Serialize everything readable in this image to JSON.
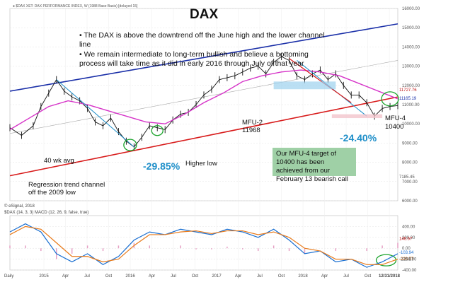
{
  "chart_data": [
    {
      "type": "line",
      "title": "DAX",
      "header": "● $DAX XET: DAX PERFORMANCE INDEX, W (1988 Base Basis) [delayed 15]",
      "ylim": [
        6000,
        16000
      ],
      "y_ticks": [
        "16000.00",
        "15000.00",
        "14000.00",
        "13000.00",
        "12000.00",
        "11000.00",
        "10000.00",
        "9000.00",
        "8000.00",
        "7000.00",
        "6000.00"
      ],
      "y_labels": {
        "upper": "11727.76",
        "lower": "11165.19",
        "low": "7185.45"
      },
      "x_ticks": [
        "2015",
        "Apr",
        "Jul",
        "Oct",
        "2016",
        "Apr",
        "Jul",
        "Oct",
        "2017",
        "Apr",
        "Jul",
        "Oct",
        "2018",
        "Apr",
        "Jul",
        "Oct",
        "12/31/2018"
      ],
      "series": [
        {
          "x": [
            0,
            3,
            6,
            8,
            10,
            12,
            14,
            16,
            18,
            20,
            22,
            24,
            26,
            28,
            30,
            32,
            34,
            36,
            38,
            40,
            42,
            44,
            46,
            48,
            50,
            52,
            54,
            56,
            58,
            60,
            62,
            64,
            66,
            68,
            70,
            72,
            74,
            76,
            78,
            80,
            82,
            84,
            86,
            88,
            90,
            92,
            94,
            96,
            98,
            100
          ],
          "y": [
            9800,
            9400,
            9900,
            10900,
            11600,
            12300,
            11700,
            11400,
            11200,
            10800,
            10100,
            9900,
            10300,
            9600,
            9100,
            8800,
            9300,
            9900,
            9800,
            9700,
            10200,
            10500,
            10600,
            11000,
            11500,
            11800,
            12300,
            12400,
            12500,
            12700,
            12900,
            13000,
            12600,
            13200,
            13500,
            13300,
            12500,
            12300,
            12600,
            12800,
            12300,
            12600,
            12000,
            11500,
            11500,
            11100,
            10400,
            10800,
            10900,
            10950
          ]
        },
        {
          "x": [
            0,
            5,
            10,
            15,
            20,
            25,
            30,
            35,
            40,
            45,
            50,
            55,
            60,
            65,
            70,
            75,
            80,
            85,
            90,
            95,
            100
          ],
          "y": [
            9700,
            10300,
            10900,
            11200,
            11000,
            10700,
            10400,
            10100,
            10000,
            10500,
            11100,
            11600,
            12200,
            12500,
            12700,
            12800,
            12700,
            12500,
            12100,
            11700,
            11300
          ]
        }
      ]
    },
    {
      "type": "line",
      "title": "",
      "header": "$DAX (14, 3, 3)   MACD (12, 26, 9, false, true)",
      "ylim": [
        -400,
        600
      ],
      "y_ticks": [
        "400.00",
        "200.00",
        "0.00",
        "-200.00",
        "-400.00"
      ],
      "y_labels": {
        "a": "-103.94",
        "b": "-220.77",
        "c": "-226.67",
        "d": "146.67"
      },
      "series": [
        {
          "x": [
            0,
            4,
            8,
            12,
            16,
            20,
            24,
            28,
            32,
            36,
            40,
            44,
            48,
            52,
            56,
            60,
            64,
            68,
            72,
            76,
            80,
            84,
            88,
            92,
            96,
            100
          ],
          "y": [
            300,
            450,
            300,
            -100,
            -250,
            -100,
            -300,
            -150,
            150,
            300,
            250,
            350,
            300,
            250,
            350,
            300,
            200,
            350,
            150,
            -100,
            -50,
            -250,
            -200,
            -350,
            -250,
            -100
          ]
        },
        {
          "x": [
            0,
            4,
            8,
            12,
            16,
            20,
            24,
            28,
            32,
            36,
            40,
            44,
            48,
            52,
            56,
            60,
            64,
            68,
            72,
            76,
            80,
            84,
            88,
            92,
            96,
            100
          ],
          "y": [
            250,
            400,
            350,
            100,
            -150,
            -150,
            -250,
            -200,
            50,
            250,
            250,
            300,
            320,
            270,
            320,
            320,
            250,
            300,
            200,
            0,
            -50,
            -200,
            -200,
            -300,
            -300,
            -200
          ]
        }
      ]
    }
  ],
  "annotations": {
    "bullets": [
      "• The DAX is above the downtrend off the June high and the lower channel line",
      "• We remain intermediate to long-term bullish and believe a bottoming process will take time as it did in early 2016 through July of that year"
    ],
    "mfu2": "MFU-2",
    "mfu2_val": "11968",
    "mfu4": "MFU-4",
    "mfu4_val": "10400",
    "wk_avg": "40 wk avg.",
    "higher_low": "Higher low",
    "pct1": "-29.85%",
    "pct2": "-24.40%",
    "regression1": "Regression trend channel",
    "regression2": "off the 2009 low",
    "target": "Our MFU-4 target of 10400 has been achieved from our February 13 bearish call",
    "copyright": "© eSignal, 2018",
    "day_label": "Daily"
  },
  "colors": {
    "upper_channel": "#1a2fa8",
    "lower_channel": "#d81b1b",
    "avg": "#d633c8",
    "price": "#111111",
    "arrow": "#1f8fc9",
    "circle": "#1aa32b",
    "macd": "#e87a1a",
    "stoch": "#1a6fd1",
    "hist": "#e6a0c4"
  }
}
